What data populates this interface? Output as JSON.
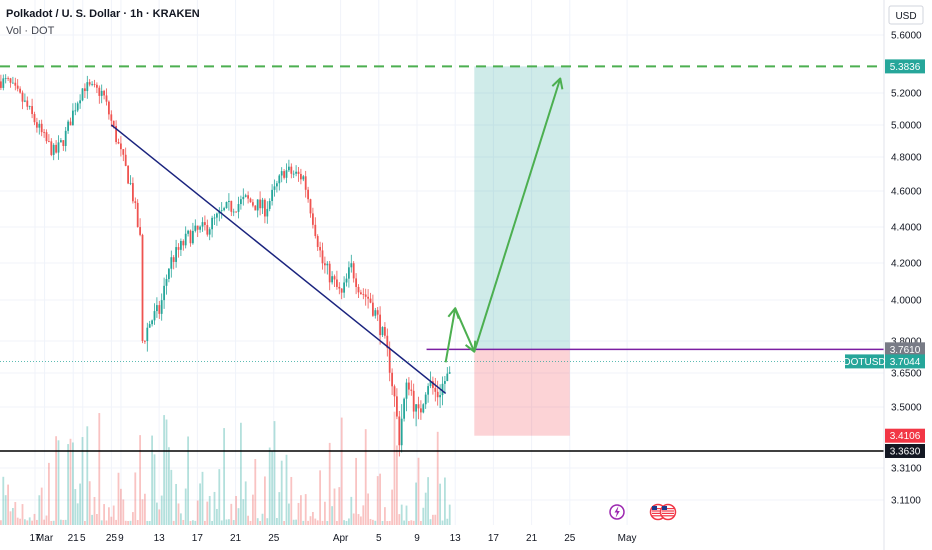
{
  "header": {
    "title": "Polkadot / U. S. Dollar · 1h · KRAKEN",
    "volume_label": "Vol · DOT"
  },
  "currency": "USD",
  "symbol": "DOTUSD",
  "chart_data": {
    "type": "candlestick",
    "title": "Polkadot / U. S. Dollar · 1h · KRAKEN",
    "ylabel": "USD",
    "y_ticks": [
      "5.6000",
      "5.2000",
      "5.0000",
      "4.8000",
      "4.6000",
      "4.4000",
      "4.2000",
      "4.0000",
      "3.8000",
      "3.6500",
      "3.5000",
      "3.3100",
      "3.1100"
    ],
    "x_ticks": [
      "17",
      "21",
      "25",
      "Mar",
      "5",
      "9",
      "13",
      "17",
      "21",
      "25",
      "Apr",
      "5",
      "9",
      "13",
      "17",
      "21",
      "25",
      "May"
    ],
    "price_tags": [
      {
        "label": "5.3836",
        "value": 5.3836,
        "color": "#26a69a"
      },
      {
        "label": "3.7610",
        "value": 3.761,
        "color": "#787b86"
      },
      {
        "label": "3.7044",
        "value": 3.7044,
        "color": "#26a69a"
      },
      {
        "label": "3.4106",
        "value": 3.4106,
        "color": "#f23645"
      },
      {
        "label": "3.3630",
        "value": 3.363,
        "color": "#131722"
      }
    ],
    "levels": {
      "target": 5.3836,
      "entry": 3.761,
      "stop": 3.4106,
      "support": 3.363,
      "current": 3.7044
    },
    "colors": {
      "up": "#26a69a",
      "down": "#ef5350",
      "trendline": "#1a237e",
      "target_line": "#4caf50",
      "entry_line": "#7b1fa2",
      "support_line": "#000000",
      "profit_zone": "#26a69a",
      "loss_zone": "#f23645"
    },
    "trendline": [
      {
        "x": "Feb 25",
        "y": 5.0
      },
      {
        "x": "Apr 12",
        "y": 3.56
      }
    ],
    "path_arrow": [
      {
        "x": "Apr 12",
        "y": 3.7
      },
      {
        "x": "Apr 13",
        "y": 3.96
      },
      {
        "x": "Apr 15",
        "y": 3.75
      },
      {
        "x": "Apr 24",
        "y": 5.3
      }
    ],
    "trend_profile": [
      {
        "d": "Feb 14",
        "y": 5.28
      },
      {
        "d": "Feb 16",
        "y": 5.12
      },
      {
        "d": "Feb 18",
        "y": 4.9
      },
      {
        "d": "Feb 19",
        "y": 4.82
      },
      {
        "d": "Feb 20",
        "y": 4.92
      },
      {
        "d": "Feb 21",
        "y": 5.1
      },
      {
        "d": "Feb 22",
        "y": 5.25
      },
      {
        "d": "Feb 24",
        "y": 5.2
      },
      {
        "d": "Feb 25",
        "y": 5.0
      },
      {
        "d": "Feb 26",
        "y": 4.8
      },
      {
        "d": "Feb 27",
        "y": 4.62
      },
      {
        "d": "Feb 28",
        "y": 4.3
      },
      {
        "d": "Mar 1",
        "y": 4.72
      },
      {
        "d": "Mar 2",
        "y": 4.85
      },
      {
        "d": "Mar 3",
        "y": 4.5
      },
      {
        "d": "Mar 4",
        "y": 4.22
      },
      {
        "d": "Mar 5",
        "y": 4.45
      },
      {
        "d": "Mar 6",
        "y": 4.6
      },
      {
        "d": "Mar 7",
        "y": 4.42
      },
      {
        "d": "Mar 9",
        "y": 4.2
      },
      {
        "d": "Mar 10",
        "y": 4.05
      },
      {
        "d": "Mar 11",
        "y": 3.78
      },
      {
        "d": "Mar 12",
        "y": 3.9
      },
      {
        "d": "Mar 13",
        "y": 3.95
      },
      {
        "d": "Mar 14",
        "y": 4.2
      },
      {
        "d": "Mar 16",
        "y": 4.35
      },
      {
        "d": "Mar 18",
        "y": 4.4
      },
      {
        "d": "Mar 20",
        "y": 4.5
      },
      {
        "d": "Mar 22",
        "y": 4.55
      },
      {
        "d": "Mar 24",
        "y": 4.5
      },
      {
        "d": "Mar 25",
        "y": 4.6
      },
      {
        "d": "Mar 26",
        "y": 4.72
      },
      {
        "d": "Mar 28",
        "y": 4.68
      },
      {
        "d": "Mar 29",
        "y": 4.45
      },
      {
        "d": "Mar 30",
        "y": 4.2
      },
      {
        "d": "Apr 1",
        "y": 4.02
      },
      {
        "d": "Apr 2",
        "y": 4.18
      },
      {
        "d": "Apr 3",
        "y": 4.05
      },
      {
        "d": "Apr 4",
        "y": 4.0
      },
      {
        "d": "Apr 5",
        "y": 3.88
      },
      {
        "d": "Apr 6",
        "y": 3.7
      },
      {
        "d": "Apr 7",
        "y": 3.4
      },
      {
        "d": "Apr 8",
        "y": 3.62
      },
      {
        "d": "Apr 9",
        "y": 3.45
      },
      {
        "d": "Apr 10",
        "y": 3.62
      },
      {
        "d": "Apr 11",
        "y": 3.55
      },
      {
        "d": "Apr 12",
        "y": 3.63
      }
    ]
  }
}
